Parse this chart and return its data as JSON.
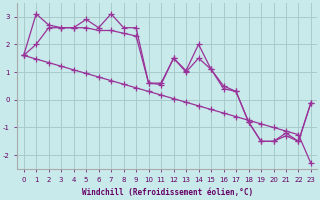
{
  "xlabel": "Windchill (Refroidissement éolien,°C)",
  "x": [
    0,
    1,
    2,
    3,
    4,
    5,
    6,
    7,
    8,
    9,
    10,
    11,
    12,
    13,
    14,
    15,
    16,
    17,
    18,
    19,
    20,
    21,
    22,
    23
  ],
  "y_jagged": [
    1.6,
    3.1,
    2.7,
    2.6,
    2.6,
    2.9,
    2.6,
    3.1,
    2.6,
    2.6,
    0.6,
    0.55,
    1.5,
    1.05,
    2.0,
    1.1,
    0.4,
    0.3,
    -0.8,
    -1.5,
    -1.5,
    -1.2,
    -1.5,
    -0.1
  ],
  "y_smooth": [
    1.6,
    2.0,
    2.6,
    2.6,
    2.6,
    2.6,
    2.5,
    2.5,
    2.4,
    2.3,
    0.6,
    0.6,
    1.5,
    1.0,
    1.5,
    1.1,
    0.5,
    0.3,
    -0.8,
    -1.5,
    -1.5,
    -1.3,
    -1.5,
    -0.1
  ],
  "y_linear": [
    1.6,
    1.47,
    1.34,
    1.21,
    1.08,
    0.95,
    0.82,
    0.69,
    0.56,
    0.43,
    0.3,
    0.17,
    0.04,
    -0.09,
    -0.22,
    -0.35,
    -0.48,
    -0.61,
    -0.74,
    -0.87,
    -1.0,
    -1.13,
    -1.26,
    -2.3
  ],
  "line_color": "#993399",
  "bg_color": "#c8eaea",
  "grid_color": "#a8cccc",
  "ylim": [
    -2.5,
    3.5
  ],
  "xlim": [
    -0.5,
    23.5
  ],
  "yticks": [
    -2,
    -1,
    0,
    1,
    2,
    3
  ],
  "xticks": [
    0,
    1,
    2,
    3,
    4,
    5,
    6,
    7,
    8,
    9,
    10,
    11,
    12,
    13,
    14,
    15,
    16,
    17,
    18,
    19,
    20,
    21,
    22,
    23
  ],
  "marker": "+",
  "markersize": 4,
  "linewidth": 0.9
}
